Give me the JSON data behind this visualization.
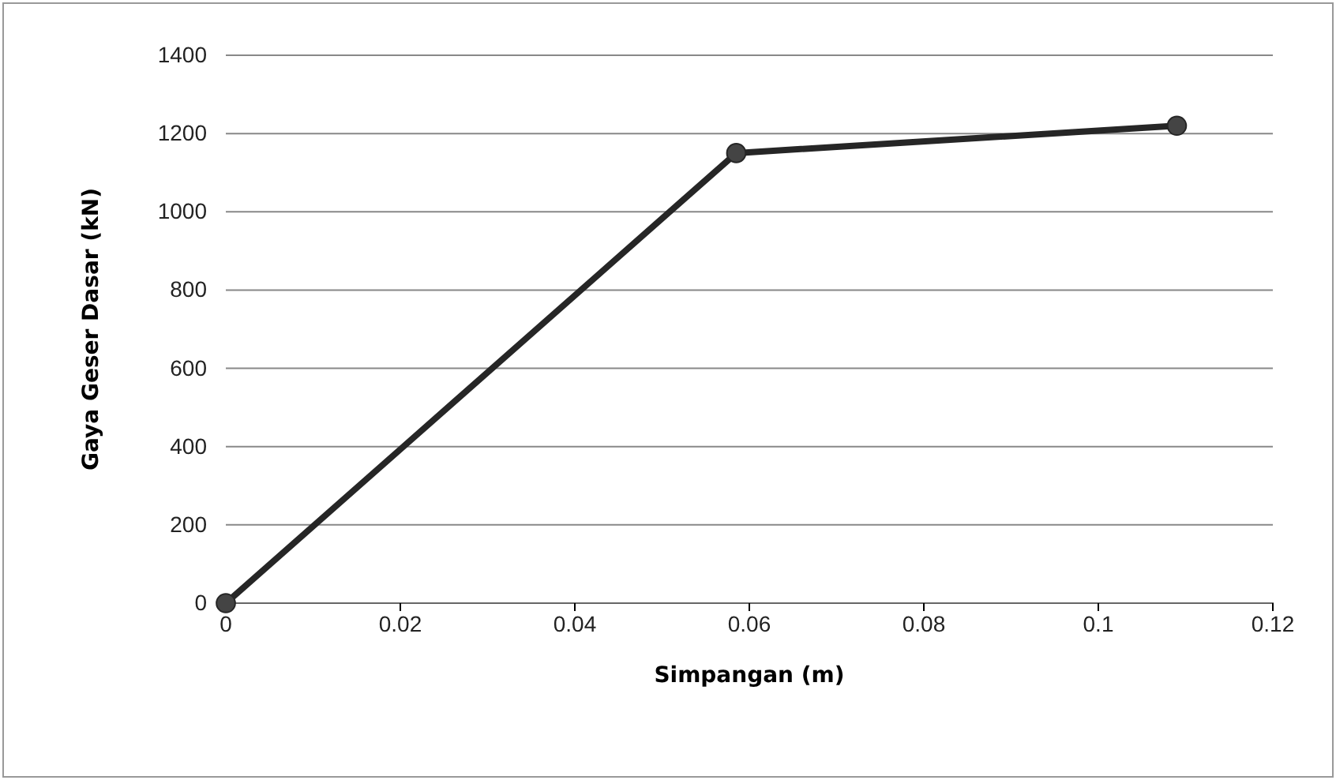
{
  "chart_data": {
    "type": "line",
    "xlabel": "Simpangan (m)",
    "ylabel": "Gaya Geser Dasar (kN)",
    "x": [
      0,
      0.0585,
      0.109
    ],
    "series": [
      {
        "color": "#262626",
        "values": [
          0,
          1150,
          1220
        ]
      }
    ],
    "xlim": [
      0,
      0.12
    ],
    "xticks": [
      0,
      0.02,
      0.04,
      0.06,
      0.08,
      0.1,
      0.12
    ],
    "ylim": [
      0,
      1400
    ],
    "yticks": [
      0,
      200,
      400,
      600,
      800,
      1000,
      1200,
      1400
    ],
    "grid": "y",
    "marker": "circle",
    "line_style": "solid"
  }
}
